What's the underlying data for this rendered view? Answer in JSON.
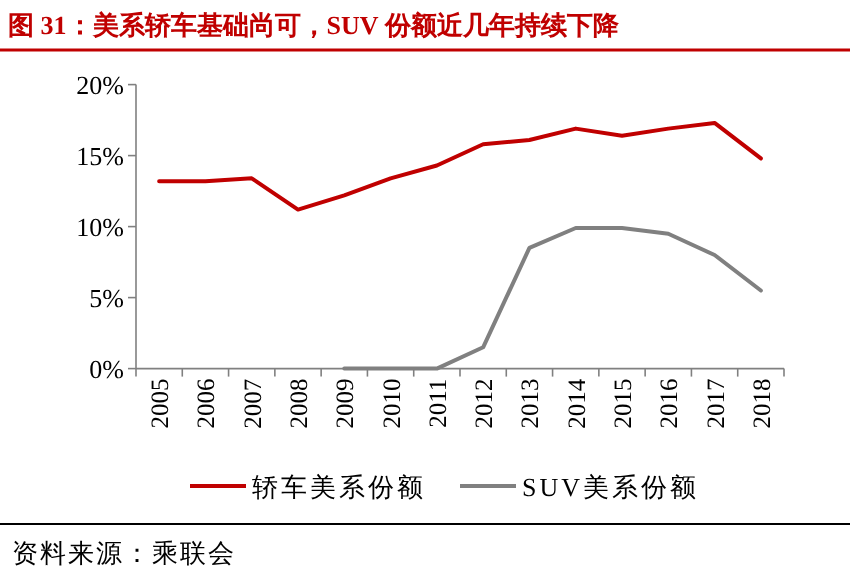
{
  "chart_data": {
    "type": "line",
    "title": "图 31：美系轿车基础尚可，SUV 份额近几年持续下降",
    "categories": [
      "2005",
      "2006",
      "2007",
      "2008",
      "2009",
      "2010",
      "2011",
      "2012",
      "2013",
      "2014",
      "2015",
      "2016",
      "2017",
      "2018"
    ],
    "series": [
      {
        "name": "轿车美系份额",
        "color": "#c00000",
        "values": [
          13.2,
          13.2,
          13.4,
          11.2,
          12.2,
          13.4,
          14.3,
          15.8,
          16.1,
          16.9,
          16.4,
          16.9,
          17.3,
          14.8
        ]
      },
      {
        "name": "SUV美系份额",
        "color": "#808080",
        "values": [
          null,
          null,
          null,
          null,
          0,
          0,
          0,
          1.5,
          8.5,
          9.9,
          9.9,
          9.5,
          8.0,
          5.5
        ]
      }
    ],
    "ylim": [
      0,
      20
    ],
    "yticks": [
      {
        "value": 0,
        "label": "0%"
      },
      {
        "value": 5,
        "label": "5%"
      },
      {
        "value": 10,
        "label": "10%"
      },
      {
        "value": 15,
        "label": "15%"
      },
      {
        "value": 20,
        "label": "20%"
      }
    ],
    "legend": "bottom",
    "grid": false,
    "marker": "none",
    "line_style": "solid",
    "annotations": [
      "资料来源：乘联会"
    ]
  }
}
